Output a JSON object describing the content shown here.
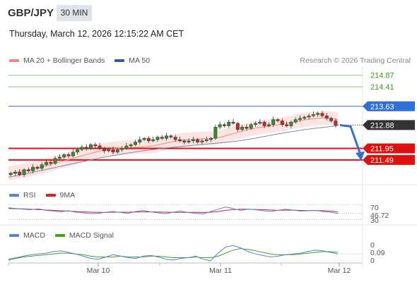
{
  "header": {
    "symbol": "GBP/JPY",
    "timeframe": "30 MIN",
    "datetime": "Thursday, March 12, 2026 12:15:22 AM CET"
  },
  "main_legend": {
    "items": [
      {
        "label": "MA 20 + Bollinger Bands",
        "color": "#f08a7e"
      },
      {
        "label": "MA 50",
        "color": "#2c5f9e"
      }
    ],
    "credit": "Research © 2026 Trading Central"
  },
  "rsi_legend": {
    "items": [
      {
        "label": "RSI",
        "color": "#5b7fd6"
      },
      {
        "label": "9MA",
        "color": "#e02020"
      }
    ]
  },
  "macd_legend": {
    "items": [
      {
        "label": "MACD",
        "color": "#5b7fd6"
      },
      {
        "label": "MACD Signal",
        "color": "#3fa520"
      }
    ]
  },
  "colors": {
    "resistance_green": "#8fc870",
    "resistance_blue": "#2f6fd8",
    "support_red": "#e01010",
    "current_price_bg": "#333333",
    "arrow": "#2f6fd8",
    "candle_up": "#2f8f2f",
    "candle_down": "#d02020"
  },
  "chart_data": [
    {
      "type": "candlestick",
      "title": "GBP/JPY 30 MIN",
      "x_ticks": [
        "Mar 10",
        "Mar 11",
        "Mar 12"
      ],
      "ylim": [
        210.5,
        215.2
      ],
      "levels": [
        {
          "value": 214.87,
          "label": "214.87",
          "kind": "resistance",
          "color": "#8fc870"
        },
        {
          "value": 214.41,
          "label": "214.41",
          "kind": "resistance",
          "color": "#8fc870"
        },
        {
          "value": 213.63,
          "label": "213.63",
          "kind": "pivot",
          "color": "#2f6fd8"
        },
        {
          "value": 211.95,
          "label": "211.95",
          "kind": "support",
          "color": "#e01010"
        },
        {
          "value": 211.49,
          "label": "211.49",
          "kind": "support",
          "color": "#e01010"
        }
      ],
      "current_price": {
        "value": 212.88,
        "label": "212.88"
      },
      "forecast_arrow": {
        "from": 212.88,
        "to": 211.49,
        "direction": "down"
      },
      "closes": [
        210.95,
        211.0,
        210.9,
        211.1,
        211.05,
        211.2,
        211.15,
        211.3,
        211.4,
        211.35,
        211.55,
        211.6,
        211.7,
        211.65,
        211.8,
        211.9,
        212.0,
        211.95,
        212.1,
        212.05,
        211.95,
        211.85,
        211.9,
        211.8,
        211.9,
        211.95,
        212.05,
        212.1,
        212.2,
        212.3,
        212.35,
        212.25,
        212.3,
        212.4,
        212.35,
        212.45,
        212.4,
        212.3,
        212.25,
        212.2,
        212.25,
        212.3,
        212.2,
        212.25,
        212.3,
        212.35,
        212.8,
        212.9,
        212.85,
        213.0,
        212.95,
        212.7,
        212.8,
        212.75,
        212.9,
        212.95,
        213.0,
        212.85,
        212.9,
        213.1,
        213.05,
        212.9,
        212.85,
        213.0,
        213.1,
        213.15,
        213.2,
        213.25,
        213.3,
        213.35,
        213.25,
        213.15,
        213.05,
        212.88
      ],
      "ma20": [
        210.95,
        211.0,
        211.05,
        211.1,
        211.15,
        211.22,
        211.3,
        211.38,
        211.45,
        211.52,
        211.6,
        211.68,
        211.75,
        211.82,
        211.88,
        211.93,
        211.95,
        211.97,
        211.99,
        212.0,
        212.02,
        212.05,
        212.1,
        212.16,
        212.22,
        212.27,
        212.3,
        212.32,
        212.33,
        212.34,
        212.36,
        212.4,
        212.48,
        212.56,
        212.63,
        212.7,
        212.76,
        212.8,
        212.84,
        212.88,
        212.92,
        212.97,
        213.03,
        213.08,
        213.12,
        213.15,
        213.17,
        213.15,
        213.1
      ],
      "ma50": [
        210.8,
        210.86,
        210.93,
        211.0,
        211.07,
        211.14,
        211.21,
        211.28,
        211.35,
        211.42,
        211.49,
        211.56,
        211.62,
        211.68,
        211.74,
        211.79,
        211.84,
        211.88,
        211.92,
        211.96,
        212.0,
        212.03,
        212.06,
        212.09,
        212.12,
        212.15,
        212.18,
        212.21,
        212.25,
        212.3,
        212.36,
        212.42,
        212.48,
        212.54,
        212.6,
        212.65,
        212.7,
        212.74,
        212.78,
        212.82,
        212.86
      ]
    },
    {
      "type": "line",
      "title": "RSI",
      "series": [
        {
          "name": "RSI",
          "values": [
            62,
            60,
            58,
            57,
            59,
            55,
            53,
            51,
            54,
            50,
            48,
            46,
            47,
            50,
            52,
            49,
            47,
            52,
            55,
            51,
            48,
            46,
            50,
            53,
            49,
            47,
            45,
            52,
            58,
            64,
            60,
            55,
            58,
            57,
            54,
            52,
            55,
            58,
            56,
            53,
            54,
            55,
            52,
            50,
            46.72
          ]
        },
        {
          "name": "9MA",
          "values": [
            60,
            59.5,
            59,
            58,
            57,
            56,
            55,
            54,
            53,
            52,
            51,
            50,
            49.5,
            49.5,
            50,
            50,
            50,
            50.5,
            51,
            51,
            50.5,
            50,
            49.5,
            49.5,
            49.5,
            49.5,
            49,
            50,
            52,
            55,
            57,
            58,
            58,
            57.5,
            57,
            56,
            55,
            55.5,
            55.5,
            55,
            54.5,
            54.5,
            54,
            53,
            51
          ]
        }
      ],
      "y_ticks": [
        "70",
        "30"
      ],
      "last_value": "46.72",
      "ylim": [
        25,
        75
      ]
    },
    {
      "type": "line",
      "title": "MACD",
      "series": [
        {
          "name": "MACD",
          "values": [
            0.02,
            0.04,
            0.06,
            0.08,
            0.09,
            0.1,
            0.12,
            0.13,
            0.11,
            0.09,
            0.06,
            0.03,
            0.02,
            0.05,
            0.08,
            0.06,
            0.04,
            0.03,
            0.06,
            0.07,
            0.05,
            0.02,
            0.01,
            0.03,
            0.04,
            0.06,
            0.02,
            0.0,
            0.1,
            0.18,
            0.2,
            0.17,
            0.12,
            0.09,
            0.07,
            0.05,
            0.06,
            0.08,
            0.09,
            0.1,
            0.12,
            0.14,
            0.13,
            0.11,
            0.09
          ]
        },
        {
          "name": "MACD Signal",
          "values": [
            0.01,
            0.03,
            0.05,
            0.06,
            0.07,
            0.08,
            0.09,
            0.1,
            0.1,
            0.09,
            0.08,
            0.06,
            0.05,
            0.05,
            0.05,
            0.06,
            0.05,
            0.05,
            0.05,
            0.06,
            0.06,
            0.05,
            0.04,
            0.04,
            0.04,
            0.05,
            0.04,
            0.04,
            0.06,
            0.1,
            0.14,
            0.16,
            0.15,
            0.13,
            0.11,
            0.09,
            0.08,
            0.08,
            0.08,
            0.09,
            0.1,
            0.11,
            0.12,
            0.12,
            0.11
          ]
        }
      ],
      "y_ticks": [
        "0",
        "0"
      ],
      "last_value": "0.09"
    }
  ]
}
